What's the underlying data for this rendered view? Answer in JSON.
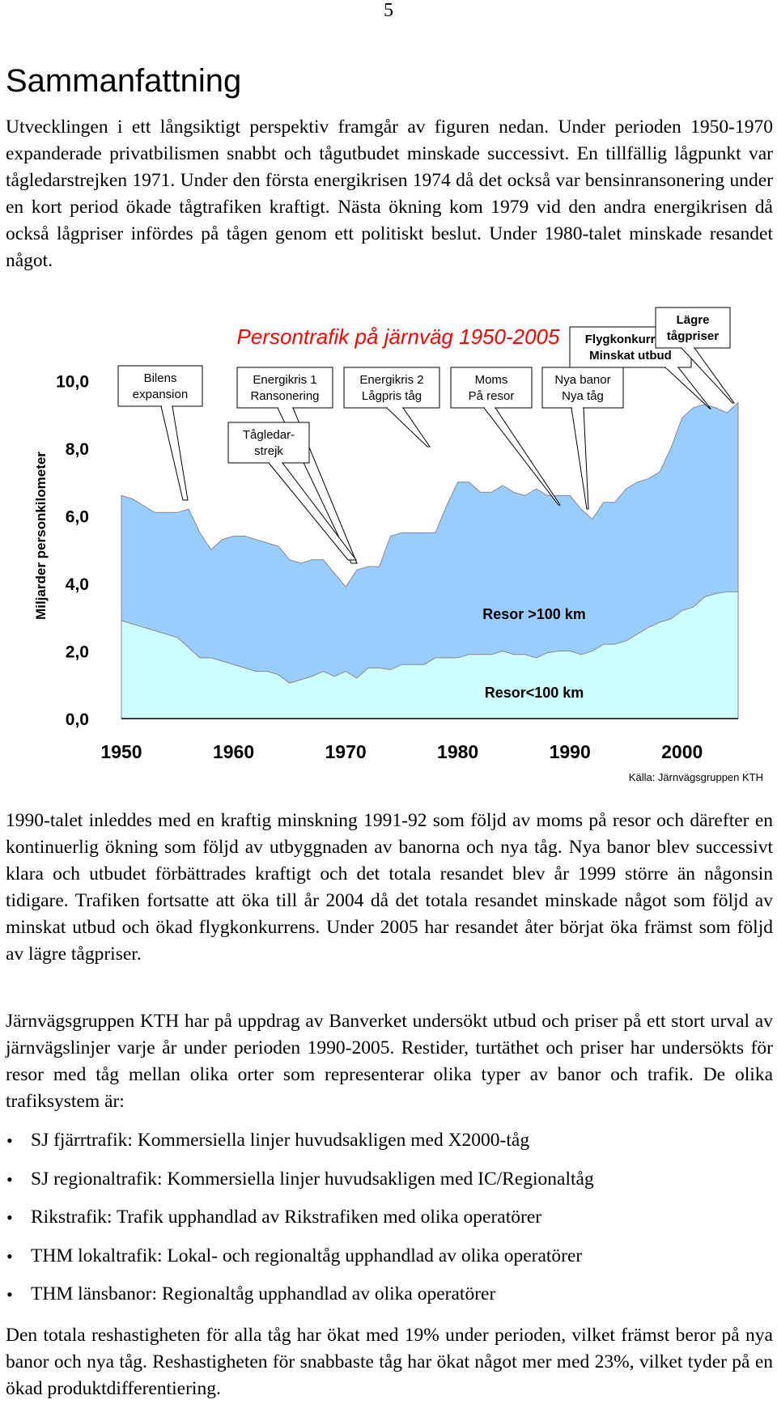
{
  "page": {
    "number": "5",
    "heading": "Sammanfattning",
    "paragraph1": "Utvecklingen i ett långsiktigt perspektiv framgår av figuren nedan. Under perioden 1950-1970 expanderade privatbilismen snabbt och tågutbudet minskade successivt. En tillfällig lågpunkt var tågledarstrejken 1971. Under den första energikrisen 1974 då det också var bensinransonering under en kort period ökade tågtrafiken kraftigt. Nästa ökning kom 1979 vid den andra energikrisen då också lågpriser infördes på tågen genom ett politiskt beslut. Under 1980-talet minskade resandet något.",
    "paragraph2": "1990-talet inleddes med en kraftig minskning 1991-92 som följd av moms på resor och därefter en kontinuerlig ökning som följd av utbyggnaden av banorna och nya tåg. Nya banor blev successivt klara och utbudet förbättrades kraftigt och det totala resandet blev år 1999 större än någonsin tidigare. Trafiken fortsatte att öka till år 2004 då det totala resandet minskade något som följd av minskat utbud och ökad flygkonkurrens. Under 2005 har resandet åter börjat öka främst som följd av lägre tågpriser.",
    "paragraph3": "Järnvägsgruppen KTH har på uppdrag av Banverket undersökt utbud och priser på ett stort urval av järnvägslinjer varje år under perioden 1990-2005. Restider, turtäthet och priser har undersökts för resor med tåg mellan olika orter som representerar olika typer av banor och trafik. De olika trafiksystem är:",
    "bullets": [
      "SJ fjärrtrafik: Kommersiella linjer huvudsakligen med X2000-tåg",
      "SJ regionaltrafik: Kommersiella linjer huvudsakligen med IC/Regionaltåg",
      "Rikstrafik: Trafik upphandlad av Rikstrafiken med olika operatörer",
      "THM lokaltrafik: Lokal- och regionaltåg upphandlad av olika operatörer",
      "THM länsbanor: Regionaltåg upphandlad av olika operatörer"
    ],
    "paragraph4": "Den totala reshastigheten för alla tåg har ökat med 19% under perioden, vilket främst beror på nya banor och nya tåg. Reshastigheten för snabbaste tåg har ökat något mer med 23%, vilket tyder på en ökad produktdifferentiering."
  },
  "chart_data": {
    "type": "area",
    "title": "Persontrafik på järnväg 1950-2005",
    "ylabel": "Miljarder personkilometer",
    "source": "Källa: Järnvägsgruppen KTH",
    "ylim": [
      0,
      11
    ],
    "xlim": [
      1950,
      2005
    ],
    "y_ticks": [
      "0,0",
      "2,0",
      "4,0",
      "6,0",
      "8,0",
      "10,0"
    ],
    "x_ticks": [
      "1950",
      "1960",
      "1970",
      "1980",
      "1990",
      "2000"
    ],
    "x": [
      1950,
      1951,
      1952,
      1953,
      1954,
      1955,
      1956,
      1957,
      1958,
      1959,
      1960,
      1961,
      1962,
      1963,
      1964,
      1965,
      1966,
      1967,
      1968,
      1969,
      1970,
      1971,
      1972,
      1973,
      1974,
      1975,
      1976,
      1977,
      1978,
      1979,
      1980,
      1981,
      1982,
      1983,
      1984,
      1985,
      1986,
      1987,
      1988,
      1989,
      1990,
      1991,
      1992,
      1993,
      1994,
      1995,
      1996,
      1997,
      1998,
      1999,
      2000,
      2001,
      2002,
      2003,
      2004,
      2005
    ],
    "series": [
      {
        "name": "Resor<100 km",
        "color": "#ccffff",
        "stack": "lower",
        "values": [
          2.9,
          2.8,
          2.7,
          2.6,
          2.5,
          2.4,
          2.1,
          1.8,
          1.8,
          1.7,
          1.6,
          1.5,
          1.4,
          1.4,
          1.3,
          1.05,
          1.15,
          1.25,
          1.4,
          1.25,
          1.4,
          1.2,
          1.5,
          1.5,
          1.45,
          1.6,
          1.6,
          1.6,
          1.8,
          1.8,
          1.8,
          1.9,
          1.9,
          1.9,
          2.0,
          1.9,
          1.9,
          1.8,
          1.95,
          2.0,
          2.0,
          1.9,
          2.0,
          2.2,
          2.2,
          2.3,
          2.5,
          2.7,
          2.85,
          2.95,
          3.2,
          3.3,
          3.6,
          3.7,
          3.75,
          3.75
        ]
      },
      {
        "name": "Resor >100 km",
        "color": "#99ccff",
        "stack": "total",
        "values": [
          6.6,
          6.5,
          6.3,
          6.1,
          6.1,
          6.1,
          6.2,
          5.5,
          5.0,
          5.3,
          5.4,
          5.4,
          5.3,
          5.2,
          5.1,
          4.7,
          4.6,
          4.7,
          4.7,
          4.3,
          3.9,
          4.4,
          4.5,
          4.5,
          5.4,
          5.5,
          5.5,
          5.5,
          5.5,
          6.3,
          7.0,
          7.0,
          6.7,
          6.7,
          6.9,
          6.7,
          6.6,
          6.8,
          6.6,
          6.6,
          6.6,
          6.2,
          5.9,
          6.4,
          6.4,
          6.8,
          7.0,
          7.1,
          7.3,
          8.0,
          8.9,
          9.2,
          9.3,
          9.2,
          9.05,
          9.35
        ]
      }
    ],
    "annotations": [
      {
        "text": "Bilens\nexpansion",
        "target_x": 1956
      },
      {
        "text": "Energikris 1\nRansonering",
        "target_x": 1971
      },
      {
        "text": "Tågledar-\nstrejk",
        "target_x": 1971
      },
      {
        "text": "Energikris 2\nLågpris tåg",
        "target_x": 1979
      },
      {
        "text": "Moms\nPå resor",
        "target_x": 1992
      },
      {
        "text": "Nya banor\nNya tåg",
        "target_x": 1999
      },
      {
        "text": "Flygkonkurrens\nMinskat utbud",
        "target_x": 2004
      },
      {
        "text": "Lägre\ntågpriser",
        "target_x": 2005
      }
    ],
    "area_labels": [
      "Resor >100 km",
      "Resor<100 km"
    ],
    "colors": {
      "upper": "#99ccff",
      "lower": "#ccffff",
      "edge": "#888888"
    }
  }
}
